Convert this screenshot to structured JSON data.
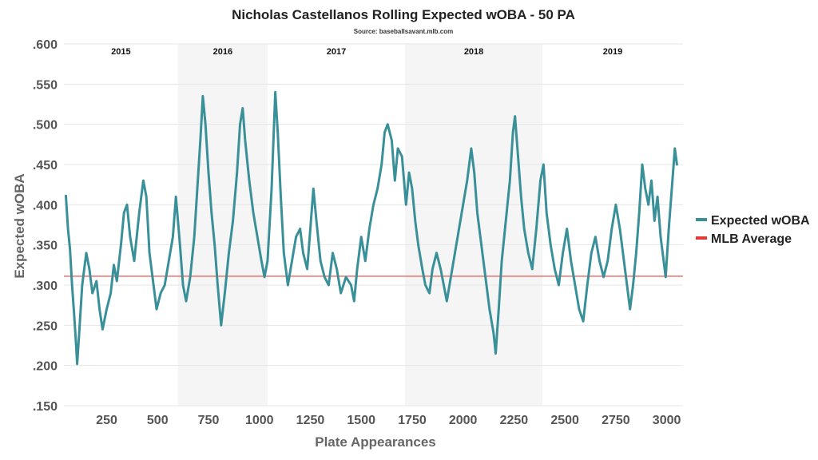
{
  "chart_data": {
    "type": "line",
    "title": "Nicholas Castellanos Rolling Expected wOBA - 50 PA",
    "subtitle": "Source: baseballsavant.mlb.com",
    "xlabel": "Plate Appearances",
    "ylabel": "Expected wOBA",
    "xlim": [
      40,
      3080
    ],
    "ylim": [
      0.15,
      0.6
    ],
    "x_ticks": [
      250,
      500,
      750,
      1000,
      1250,
      1500,
      1750,
      2000,
      2250,
      2500,
      2750,
      3000
    ],
    "y_ticks": [
      0.15,
      0.2,
      0.25,
      0.3,
      0.35,
      0.4,
      0.45,
      0.5,
      0.55,
      0.6
    ],
    "y_tick_labels": [
      ".150",
      ".200",
      ".250",
      ".300",
      ".350",
      ".400",
      ".450",
      ".500",
      ".550",
      ".600"
    ],
    "grid": "horizontal",
    "legend_position": "right",
    "seasons": [
      {
        "label": "2015",
        "start": 40,
        "end": 600,
        "shaded": false
      },
      {
        "label": "2016",
        "start": 600,
        "end": 1040,
        "shaded": true
      },
      {
        "label": "2017",
        "start": 1040,
        "end": 1715,
        "shaded": false
      },
      {
        "label": "2018",
        "start": 1715,
        "end": 2390,
        "shaded": true
      },
      {
        "label": "2019",
        "start": 2390,
        "end": 3080,
        "shaded": false
      }
    ],
    "reference_line": {
      "name": "MLB Average",
      "value": 0.311,
      "color": "#e8736f"
    },
    "series": [
      {
        "name": "Expected wOBA",
        "color": "#3a9099",
        "points": [
          [
            50,
            0.411
          ],
          [
            60,
            0.37
          ],
          [
            70,
            0.345
          ],
          [
            80,
            0.3
          ],
          [
            90,
            0.265
          ],
          [
            100,
            0.225
          ],
          [
            105,
            0.202
          ],
          [
            115,
            0.24
          ],
          [
            130,
            0.3
          ],
          [
            150,
            0.34
          ],
          [
            165,
            0.32
          ],
          [
            180,
            0.29
          ],
          [
            200,
            0.305
          ],
          [
            215,
            0.27
          ],
          [
            230,
            0.245
          ],
          [
            250,
            0.27
          ],
          [
            270,
            0.29
          ],
          [
            285,
            0.325
          ],
          [
            300,
            0.305
          ],
          [
            320,
            0.35
          ],
          [
            335,
            0.39
          ],
          [
            350,
            0.4
          ],
          [
            365,
            0.36
          ],
          [
            385,
            0.33
          ],
          [
            410,
            0.39
          ],
          [
            430,
            0.43
          ],
          [
            445,
            0.41
          ],
          [
            460,
            0.34
          ],
          [
            480,
            0.3
          ],
          [
            495,
            0.27
          ],
          [
            515,
            0.29
          ],
          [
            535,
            0.3
          ],
          [
            555,
            0.33
          ],
          [
            575,
            0.36
          ],
          [
            590,
            0.41
          ],
          [
            610,
            0.35
          ],
          [
            625,
            0.3
          ],
          [
            640,
            0.28
          ],
          [
            660,
            0.31
          ],
          [
            680,
            0.36
          ],
          [
            695,
            0.42
          ],
          [
            710,
            0.48
          ],
          [
            722,
            0.535
          ],
          [
            735,
            0.5
          ],
          [
            750,
            0.44
          ],
          [
            765,
            0.39
          ],
          [
            780,
            0.35
          ],
          [
            795,
            0.3
          ],
          [
            812,
            0.25
          ],
          [
            830,
            0.29
          ],
          [
            850,
            0.34
          ],
          [
            870,
            0.38
          ],
          [
            890,
            0.44
          ],
          [
            905,
            0.5
          ],
          [
            918,
            0.52
          ],
          [
            930,
            0.48
          ],
          [
            950,
            0.43
          ],
          [
            970,
            0.39
          ],
          [
            990,
            0.36
          ],
          [
            1010,
            0.33
          ],
          [
            1025,
            0.31
          ],
          [
            1040,
            0.33
          ],
          [
            1060,
            0.42
          ],
          [
            1078,
            0.54
          ],
          [
            1090,
            0.49
          ],
          [
            1105,
            0.41
          ],
          [
            1120,
            0.34
          ],
          [
            1140,
            0.3
          ],
          [
            1160,
            0.33
          ],
          [
            1180,
            0.36
          ],
          [
            1200,
            0.37
          ],
          [
            1215,
            0.34
          ],
          [
            1235,
            0.32
          ],
          [
            1250,
            0.37
          ],
          [
            1265,
            0.42
          ],
          [
            1280,
            0.38
          ],
          [
            1300,
            0.33
          ],
          [
            1320,
            0.31
          ],
          [
            1340,
            0.3
          ],
          [
            1360,
            0.34
          ],
          [
            1380,
            0.32
          ],
          [
            1400,
            0.29
          ],
          [
            1425,
            0.31
          ],
          [
            1450,
            0.3
          ],
          [
            1465,
            0.28
          ],
          [
            1480,
            0.32
          ],
          [
            1500,
            0.36
          ],
          [
            1520,
            0.33
          ],
          [
            1540,
            0.37
          ],
          [
            1560,
            0.4
          ],
          [
            1580,
            0.42
          ],
          [
            1600,
            0.45
          ],
          [
            1615,
            0.49
          ],
          [
            1630,
            0.5
          ],
          [
            1650,
            0.48
          ],
          [
            1665,
            0.43
          ],
          [
            1680,
            0.47
          ],
          [
            1700,
            0.46
          ],
          [
            1720,
            0.4
          ],
          [
            1735,
            0.44
          ],
          [
            1750,
            0.42
          ],
          [
            1765,
            0.38
          ],
          [
            1780,
            0.35
          ],
          [
            1800,
            0.32
          ],
          [
            1815,
            0.3
          ],
          [
            1835,
            0.29
          ],
          [
            1850,
            0.32
          ],
          [
            1870,
            0.34
          ],
          [
            1890,
            0.32
          ],
          [
            1905,
            0.3
          ],
          [
            1920,
            0.28
          ],
          [
            1940,
            0.31
          ],
          [
            1960,
            0.34
          ],
          [
            1980,
            0.37
          ],
          [
            2000,
            0.4
          ],
          [
            2020,
            0.43
          ],
          [
            2040,
            0.47
          ],
          [
            2055,
            0.44
          ],
          [
            2070,
            0.39
          ],
          [
            2090,
            0.35
          ],
          [
            2110,
            0.31
          ],
          [
            2130,
            0.27
          ],
          [
            2150,
            0.24
          ],
          [
            2160,
            0.215
          ],
          [
            2175,
            0.27
          ],
          [
            2190,
            0.33
          ],
          [
            2210,
            0.38
          ],
          [
            2230,
            0.43
          ],
          [
            2245,
            0.49
          ],
          [
            2255,
            0.51
          ],
          [
            2270,
            0.46
          ],
          [
            2285,
            0.41
          ],
          [
            2300,
            0.37
          ],
          [
            2320,
            0.34
          ],
          [
            2340,
            0.32
          ],
          [
            2360,
            0.37
          ],
          [
            2380,
            0.43
          ],
          [
            2395,
            0.45
          ],
          [
            2410,
            0.39
          ],
          [
            2430,
            0.35
          ],
          [
            2450,
            0.32
          ],
          [
            2470,
            0.3
          ],
          [
            2490,
            0.34
          ],
          [
            2510,
            0.37
          ],
          [
            2530,
            0.33
          ],
          [
            2550,
            0.3
          ],
          [
            2570,
            0.27
          ],
          [
            2590,
            0.255
          ],
          [
            2610,
            0.3
          ],
          [
            2630,
            0.34
          ],
          [
            2650,
            0.36
          ],
          [
            2670,
            0.33
          ],
          [
            2690,
            0.31
          ],
          [
            2710,
            0.33
          ],
          [
            2730,
            0.37
          ],
          [
            2750,
            0.4
          ],
          [
            2770,
            0.37
          ],
          [
            2790,
            0.33
          ],
          [
            2805,
            0.3
          ],
          [
            2820,
            0.27
          ],
          [
            2835,
            0.3
          ],
          [
            2850,
            0.34
          ],
          [
            2865,
            0.39
          ],
          [
            2880,
            0.45
          ],
          [
            2895,
            0.42
          ],
          [
            2910,
            0.4
          ],
          [
            2925,
            0.43
          ],
          [
            2940,
            0.38
          ],
          [
            2955,
            0.41
          ],
          [
            2970,
            0.36
          ],
          [
            2985,
            0.33
          ],
          [
            2995,
            0.31
          ],
          [
            3010,
            0.37
          ],
          [
            3025,
            0.42
          ],
          [
            3040,
            0.47
          ],
          [
            3050,
            0.45
          ]
        ]
      }
    ]
  }
}
